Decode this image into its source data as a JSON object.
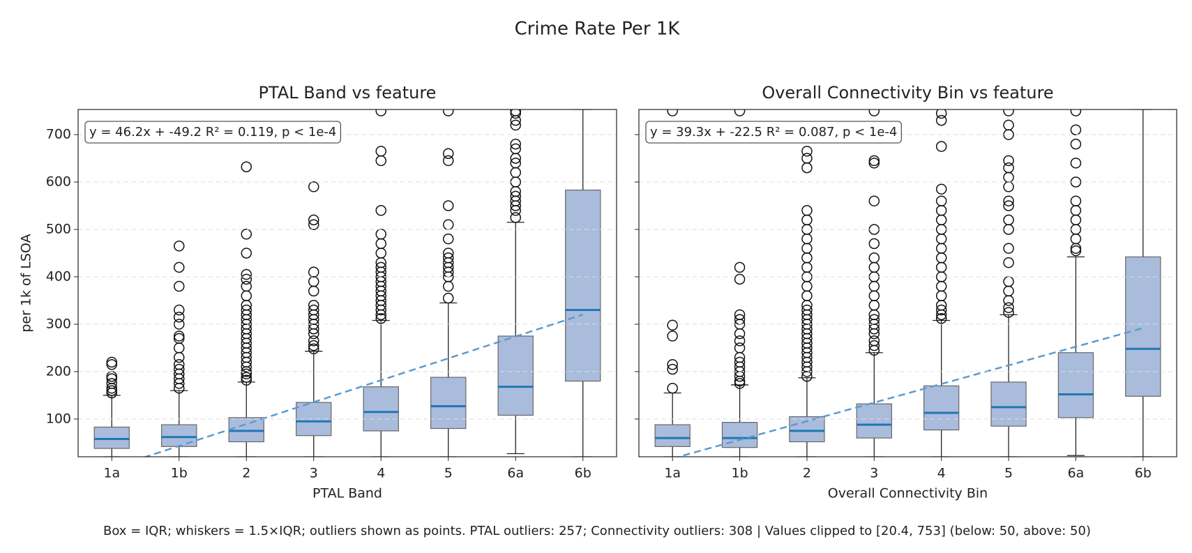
{
  "title": "Crime Rate Per 1K",
  "footnote": "Box = IQR; whiskers = 1.5×IQR; outliers shown as points. PTAL outliers: 257; Connectivity outliers: 308 | Values clipped to [20.4, 753] (below: 50, above: 50)",
  "chart_data": [
    {
      "type": "box",
      "title": "PTAL Band vs feature",
      "x_label": "PTAL Band",
      "y_label": "per 1k of LSOA",
      "categories": [
        "1a",
        "1b",
        "2",
        "3",
        "4",
        "5",
        "6a",
        "6b"
      ],
      "ylim": [
        20.4,
        753
      ],
      "yticks": [
        100,
        200,
        300,
        400,
        500,
        600,
        700
      ],
      "show_ytick_labels": true,
      "grid": true,
      "box_color": "#aabcdc",
      "median_color": "#1f77b4",
      "fit_color": "#5a9bd0",
      "annotation": "y = 46.2x + -49.2 R² = 0.119, p < 1e-4",
      "fit": {
        "x": [
          1,
          8
        ],
        "y": [
          -3.0,
          320.4
        ]
      },
      "boxes": [
        {
          "whislo": 20.4,
          "q1": 38,
          "med": 58,
          "q3": 83,
          "whishi": 150,
          "fliers": [
            155,
            160,
            165,
            175,
            185,
            190,
            215,
            220
          ]
        },
        {
          "whislo": 20.4,
          "q1": 42,
          "med": 62,
          "q3": 88,
          "whishi": 160,
          "fliers": [
            165,
            175,
            185,
            195,
            205,
            215,
            230,
            250,
            270,
            275,
            300,
            315,
            330,
            380,
            420,
            465
          ]
        },
        {
          "whislo": 20.4,
          "q1": 52,
          "med": 75,
          "q3": 103,
          "whishi": 178,
          "fliers": [
            182,
            188,
            195,
            200,
            210,
            220,
            230,
            240,
            250,
            260,
            270,
            280,
            290,
            300,
            310,
            320,
            330,
            340,
            360,
            380,
            395,
            405,
            450,
            490,
            632
          ]
        },
        {
          "whislo": 20.4,
          "q1": 65,
          "med": 95,
          "q3": 135,
          "whishi": 243,
          "fliers": [
            248,
            255,
            265,
            280,
            290,
            300,
            310,
            320,
            330,
            340,
            370,
            390,
            410,
            510,
            520,
            590
          ]
        },
        {
          "whislo": 20.4,
          "q1": 75,
          "med": 115,
          "q3": 168,
          "whishi": 308,
          "fliers": [
            312,
            320,
            330,
            340,
            350,
            360,
            370,
            380,
            390,
            400,
            410,
            420,
            430,
            450,
            470,
            490,
            540,
            645,
            665,
            750
          ]
        },
        {
          "whislo": 20.4,
          "q1": 80,
          "med": 127,
          "q3": 188,
          "whishi": 345,
          "fliers": [
            355,
            380,
            400,
            410,
            420,
            430,
            440,
            450,
            480,
            510,
            550,
            645,
            660,
            750
          ]
        },
        {
          "whislo": 27,
          "q1": 108,
          "med": 168,
          "q3": 275,
          "whishi": 515,
          "fliers": [
            525,
            540,
            550,
            560,
            570,
            580,
            600,
            620,
            640,
            650,
            670,
            680,
            720,
            730,
            745,
            750
          ]
        },
        {
          "whislo": 20.4,
          "q1": 180,
          "med": 330,
          "q3": 583,
          "whishi": 753,
          "fliers": []
        }
      ]
    },
    {
      "type": "box",
      "title": "Overall Connectivity Bin vs feature",
      "x_label": "Overall Connectivity Bin",
      "categories": [
        "1a",
        "1b",
        "2",
        "3",
        "4",
        "5",
        "6a",
        "6b"
      ],
      "ylim": [
        20.4,
        753
      ],
      "yticks": [
        100,
        200,
        300,
        400,
        500,
        600,
        700
      ],
      "show_ytick_labels": false,
      "grid": true,
      "box_color": "#aabcdc",
      "median_color": "#1f77b4",
      "fit_color": "#5a9bd0",
      "annotation": "y = 39.3x + -22.5 R² = 0.087, p < 1e-4",
      "fit": {
        "x": [
          1,
          8
        ],
        "y": [
          16.8,
          291.9
        ]
      },
      "boxes": [
        {
          "whislo": 20.4,
          "q1": 42,
          "med": 60,
          "q3": 88,
          "whishi": 155,
          "fliers": [
            165,
            205,
            215,
            275,
            298,
            750
          ]
        },
        {
          "whislo": 20.4,
          "q1": 40,
          "med": 60,
          "q3": 93,
          "whishi": 172,
          "fliers": [
            175,
            180,
            190,
            200,
            210,
            220,
            230,
            250,
            265,
            280,
            300,
            310,
            320,
            395,
            420,
            750
          ]
        },
        {
          "whislo": 20.4,
          "q1": 52,
          "med": 75,
          "q3": 105,
          "whishi": 187,
          "fliers": [
            190,
            200,
            210,
            220,
            230,
            240,
            250,
            260,
            270,
            280,
            290,
            300,
            310,
            320,
            330,
            340,
            360,
            380,
            400,
            420,
            440,
            460,
            480,
            500,
            520,
            540,
            630,
            650,
            665
          ]
        },
        {
          "whislo": 20.4,
          "q1": 60,
          "med": 88,
          "q3": 132,
          "whishi": 240,
          "fliers": [
            245,
            255,
            265,
            280,
            290,
            300,
            310,
            320,
            340,
            360,
            380,
            400,
            420,
            440,
            470,
            500,
            560,
            640,
            645,
            750
          ]
        },
        {
          "whislo": 20.4,
          "q1": 77,
          "med": 113,
          "q3": 170,
          "whishi": 308,
          "fliers": [
            312,
            320,
            330,
            340,
            360,
            380,
            400,
            420,
            440,
            460,
            480,
            500,
            520,
            540,
            560,
            585,
            675,
            730,
            745
          ]
        },
        {
          "whislo": 20.4,
          "q1": 85,
          "med": 125,
          "q3": 178,
          "whishi": 320,
          "fliers": [
            325,
            335,
            350,
            370,
            390,
            430,
            460,
            500,
            520,
            550,
            560,
            590,
            610,
            630,
            645,
            700,
            720,
            750
          ]
        },
        {
          "whislo": 23,
          "q1": 103,
          "med": 152,
          "q3": 240,
          "whishi": 442,
          "fliers": [
            455,
            460,
            480,
            500,
            520,
            540,
            560,
            600,
            640,
            680,
            710,
            750
          ]
        },
        {
          "whislo": 20.4,
          "q1": 148,
          "med": 248,
          "q3": 442,
          "whishi": 753,
          "fliers": []
        }
      ]
    }
  ]
}
